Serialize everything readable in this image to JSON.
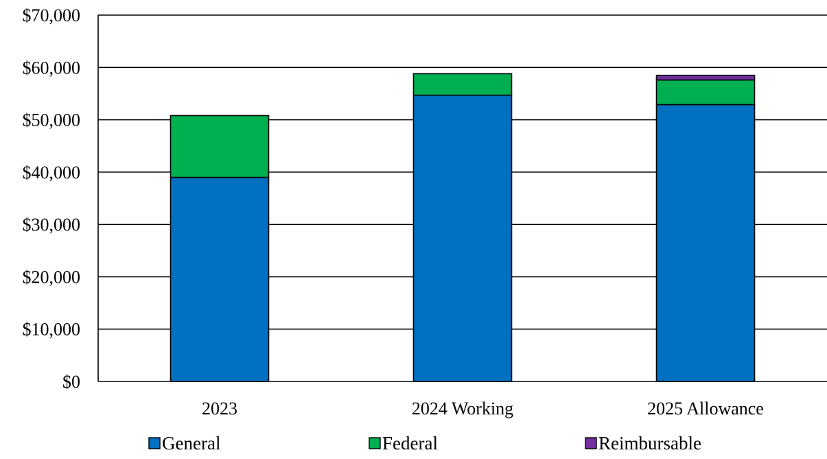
{
  "chart_data": {
    "type": "bar",
    "stacked": true,
    "title": "",
    "xlabel": "",
    "ylabel": "",
    "categories": [
      "2023",
      "2024 Working",
      "2025 Allowance"
    ],
    "series": [
      {
        "name": "General",
        "color": "#0070C0",
        "values": [
          39000,
          54700,
          52900
        ]
      },
      {
        "name": "Federal",
        "color": "#00B050",
        "values": [
          11800,
          4100,
          4700
        ]
      },
      {
        "name": "Reimbursable",
        "color": "#7030A0",
        "values": [
          0,
          0,
          900
        ]
      }
    ],
    "ylim": [
      0,
      70000
    ],
    "yticks": [
      0,
      10000,
      20000,
      30000,
      40000,
      50000,
      60000,
      70000
    ],
    "ytick_labels": [
      "$0",
      "$10,000",
      "$20,000",
      "$30,000",
      "$40,000",
      "$50,000",
      "$60,000",
      "$70,000"
    ],
    "grid": true,
    "legend_position": "bottom"
  }
}
